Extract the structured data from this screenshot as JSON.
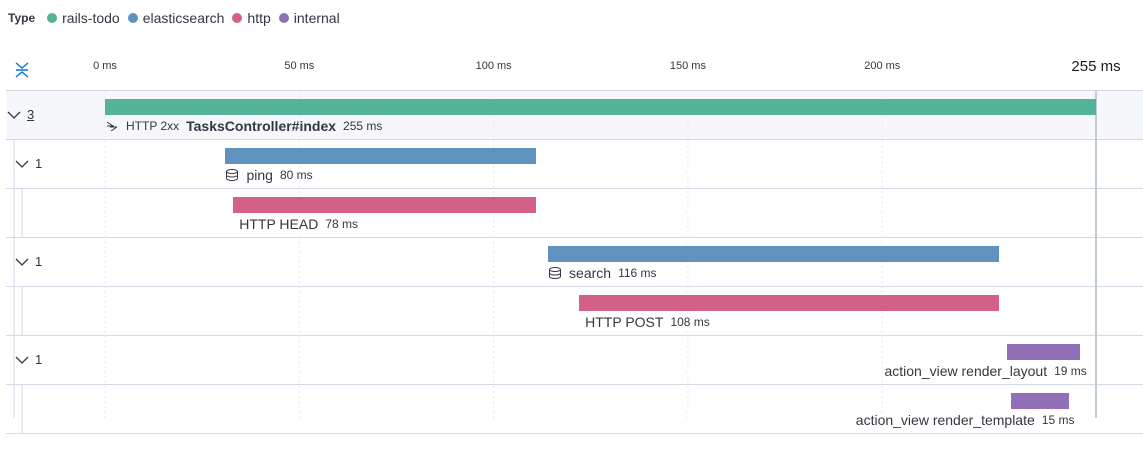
{
  "chart_data": {
    "type": "waterfall",
    "legend_title": "Type",
    "series": [
      {
        "name": "rails-todo",
        "color": "#54b399"
      },
      {
        "name": "elasticsearch",
        "color": "#6092c0"
      },
      {
        "name": "http",
        "color": "#d36086"
      },
      {
        "name": "internal",
        "color": "#9170b8"
      }
    ],
    "xlim": [
      0,
      255
    ],
    "xticks": [
      {
        "value": 0,
        "label": "0 ms"
      },
      {
        "value": 50,
        "label": "50 ms"
      },
      {
        "value": 100,
        "label": "100 ms"
      },
      {
        "value": 150,
        "label": "150 ms"
      },
      {
        "value": 200,
        "label": "200 ms"
      },
      {
        "value": 255,
        "label": "255 ms"
      }
    ],
    "spans": [
      {
        "name": "TasksController#index",
        "badge": "HTTP 2xx",
        "children": 3,
        "start": 0,
        "values": 255,
        "value_labels": "255 ms",
        "color": "#54b399"
      },
      {
        "name": "ping",
        "children": 1,
        "start": 31,
        "values": 80,
        "value_labels": "80 ms",
        "color": "#6092c0"
      },
      {
        "name": "HTTP HEAD",
        "start": 33,
        "values": 78,
        "value_labels": "78 ms",
        "color": "#d36086"
      },
      {
        "name": "search",
        "children": 1,
        "start": 114,
        "values": 116,
        "value_labels": "116 ms",
        "color": "#6092c0"
      },
      {
        "name": "HTTP POST",
        "start": 122,
        "values": 108,
        "value_labels": "108 ms",
        "color": "#d36086"
      },
      {
        "name": "action_view render_layout",
        "children": 1,
        "start": 232,
        "values": 19,
        "value_labels": "19 ms",
        "color": "#9170b8"
      },
      {
        "name": "action_view render_template",
        "start": 233,
        "values": 15,
        "value_labels": "15 ms",
        "color": "#9170b8"
      }
    ]
  }
}
